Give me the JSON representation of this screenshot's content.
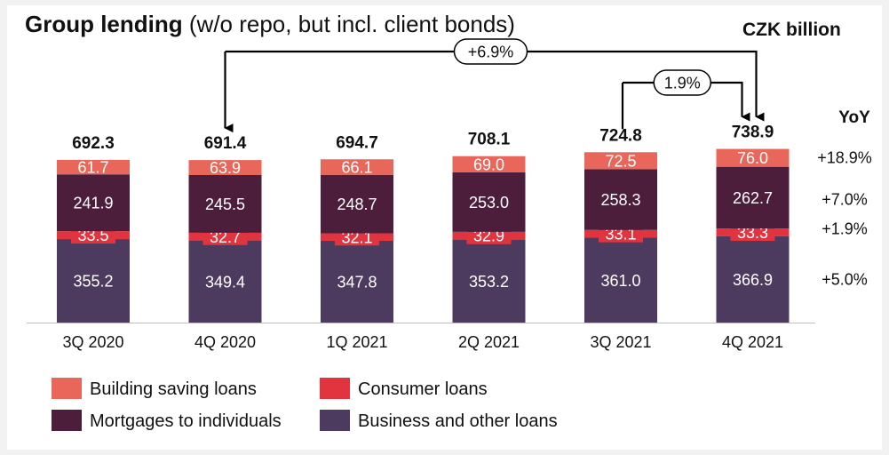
{
  "title": {
    "main": "Group lending",
    "sub": " (w/o repo, but incl. client bonds)"
  },
  "unit_label": "CZK billion",
  "yoy_label": "YoY",
  "colors": {
    "building": "#e9675a",
    "consumer": "#e2343f",
    "mortgages": "#4d1e3b",
    "business": "#4c3b5e"
  },
  "chart_data": {
    "type": "bar",
    "stacked": true,
    "categories": [
      "3Q 2020",
      "4Q 2020",
      "1Q 2021",
      "2Q 2021",
      "3Q 2021",
      "4Q 2021"
    ],
    "series": [
      {
        "name": "Business and other loans",
        "color": "#4c3b5e",
        "values": [
          355.2,
          349.4,
          347.8,
          353.2,
          361.0,
          366.9
        ],
        "labels": [
          "355.2",
          "349.4",
          "347.8",
          "353.2",
          "361.0",
          "366.9"
        ]
      },
      {
        "name": "Consumer loans",
        "color": "#e2343f",
        "values": [
          33.5,
          32.7,
          32.1,
          32.9,
          33.1,
          33.3
        ],
        "labels": [
          "33.5",
          "32.7",
          "32.1",
          "32.9",
          "33.1",
          "33.3"
        ]
      },
      {
        "name": "Mortgages to individuals",
        "color": "#4d1e3b",
        "values": [
          241.9,
          245.5,
          248.7,
          253.0,
          258.3,
          262.7
        ],
        "labels": [
          "241.9",
          "245.5",
          "248.7",
          "253.0",
          "258.3",
          "262.7"
        ]
      },
      {
        "name": "Building saving loans",
        "color": "#e9675a",
        "values": [
          61.7,
          63.9,
          66.1,
          69.0,
          72.5,
          76.0
        ],
        "labels": [
          "61.7",
          "63.9",
          "66.1",
          "69.0",
          "72.5",
          "76.0"
        ]
      }
    ],
    "totals": [
      692.3,
      691.4,
      694.7,
      708.1,
      724.8,
      738.9
    ],
    "total_labels": [
      "692.3",
      "691.4",
      "694.7",
      "708.1",
      "724.8",
      "738.9"
    ],
    "yoy": [
      {
        "series": "Building saving loans",
        "label": "+18.9%"
      },
      {
        "series": "Mortgages to individuals",
        "label": "+7.0%"
      },
      {
        "series": "Consumer loans",
        "label": "+1.9%"
      },
      {
        "series": "Business and other loans",
        "label": "+5.0%"
      }
    ],
    "annotations": [
      {
        "from": "4Q 2020",
        "to": "4Q 2021",
        "label": "+6.9%"
      },
      {
        "from": "3Q 2021",
        "to": "4Q 2021",
        "label": "1.9%"
      }
    ],
    "legend": [
      {
        "name": "Building saving loans",
        "color": "#e9675a"
      },
      {
        "name": "Consumer loans",
        "color": "#e2343f"
      },
      {
        "name": "Mortgages to individuals",
        "color": "#4d1e3b"
      },
      {
        "name": "Business and other loans",
        "color": "#4c3b5e"
      }
    ],
    "legend_position": "bottom-left",
    "grid": false
  }
}
